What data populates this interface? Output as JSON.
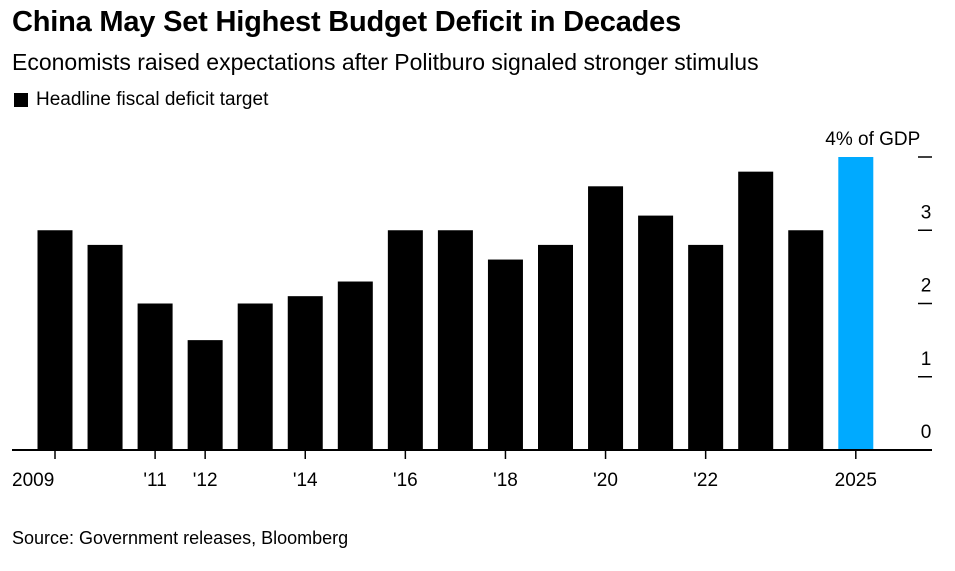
{
  "header": {
    "title": "China May Set Highest Budget Deficit in Decades",
    "subtitle": "Economists raised expectations after Politburo signaled stronger stimulus"
  },
  "legend": {
    "label": "Headline fiscal deficit target"
  },
  "footer": {
    "source": "Source: Government releases, Bloomberg"
  },
  "colors": {
    "bar": "#000000",
    "highlight": "#00aaff"
  },
  "chart_data": {
    "type": "bar",
    "x": [
      2009,
      2010,
      2011,
      2012,
      2013,
      2014,
      2015,
      2016,
      2017,
      2018,
      2019,
      2020,
      2021,
      2022,
      2023,
      2024,
      2025
    ],
    "series": [
      {
        "name": "Headline fiscal deficit target",
        "values": [
          3.0,
          2.8,
          2.0,
          1.5,
          2.0,
          2.1,
          2.3,
          3.0,
          3.0,
          2.6,
          2.8,
          3.6,
          3.2,
          2.8,
          3.8,
          3.0,
          4.0
        ]
      }
    ],
    "highlight_index": 16,
    "highlight_label": "4% of GDP",
    "x_tick_labels": [
      {
        "x": 2009,
        "label": "2009"
      },
      {
        "x": 2011,
        "label": "'11"
      },
      {
        "x": 2012,
        "label": "'12"
      },
      {
        "x": 2014,
        "label": "'14"
      },
      {
        "x": 2016,
        "label": "'16"
      },
      {
        "x": 2018,
        "label": "'18"
      },
      {
        "x": 2020,
        "label": "'20"
      },
      {
        "x": 2022,
        "label": "'22"
      },
      {
        "x": 2025,
        "label": "2025"
      }
    ],
    "y_ticks": [
      0,
      1,
      2,
      3,
      4
    ],
    "y_tick_labels": [
      "0",
      "1",
      "2",
      "3",
      ""
    ],
    "ylim": [
      0,
      4
    ],
    "y_axis_side": "right",
    "grid": false
  }
}
